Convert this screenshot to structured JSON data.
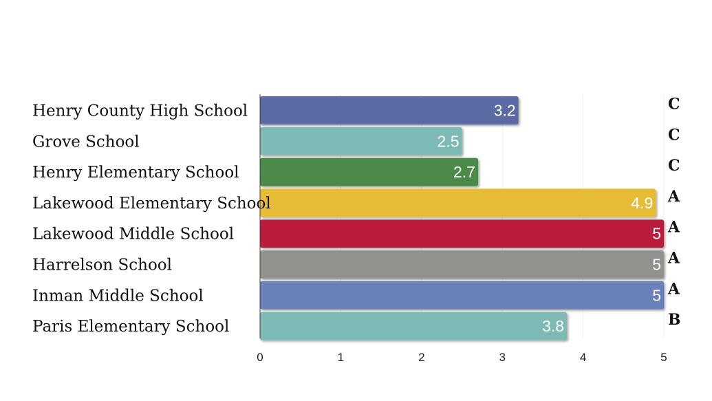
{
  "chart_data": {
    "type": "bar",
    "orientation": "horizontal",
    "title": "",
    "xlabel": "",
    "ylabel": "",
    "xlim": [
      0,
      5
    ],
    "xticks": [
      0,
      1,
      2,
      3,
      4,
      5
    ],
    "grid": true,
    "categories": [
      "Henry County High School",
      "Grove School",
      "Henry Elementary School",
      "Lakewood Elementary School",
      "Lakewood Middle School",
      "Harrelson School",
      "Inman Middle School",
      "Paris Elementary School"
    ],
    "values": [
      3.2,
      2.5,
      2.7,
      4.9,
      5,
      5,
      5,
      3.8
    ],
    "value_labels": [
      "3.2",
      "2.5",
      "2.7",
      "4.9",
      "5",
      "5",
      "5",
      "3.8"
    ],
    "grades": [
      "C",
      "C",
      "C",
      "A",
      "A",
      "A",
      "A",
      "B"
    ],
    "colors": [
      "#5b6aa4",
      "#7dbab5",
      "#4b8a4a",
      "#e7bc35",
      "#b91f3e",
      "#93918e",
      "#6a80b9",
      "#7dbab5"
    ]
  }
}
